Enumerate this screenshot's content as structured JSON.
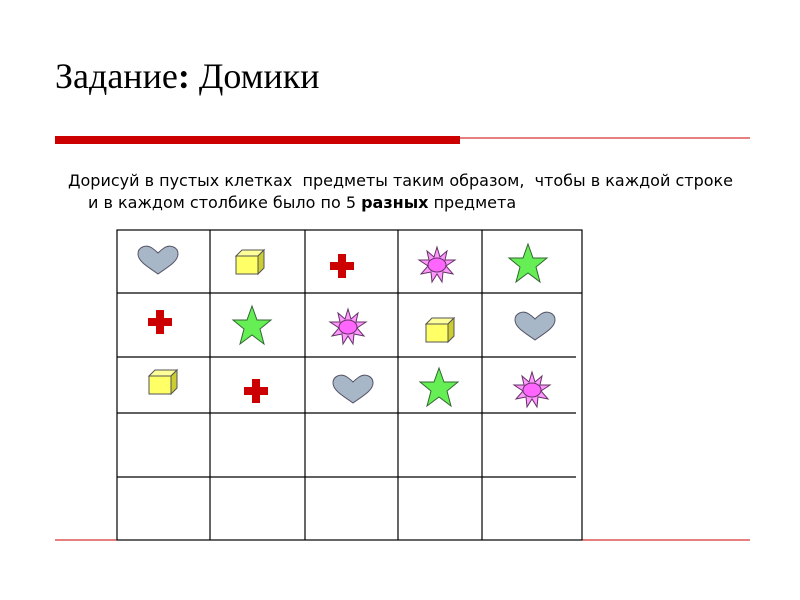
{
  "header": {
    "title": {
      "part1": "Задание",
      "colon": ":",
      "part2": " Домики"
    }
  },
  "task": {
    "text": "Дорисуй в пустых клетках  предметы таким образом,  чтобы в каждой строке и в каждом столбике было по 5 ",
    "bold": "разных",
    "tail": " предмета"
  }
}
